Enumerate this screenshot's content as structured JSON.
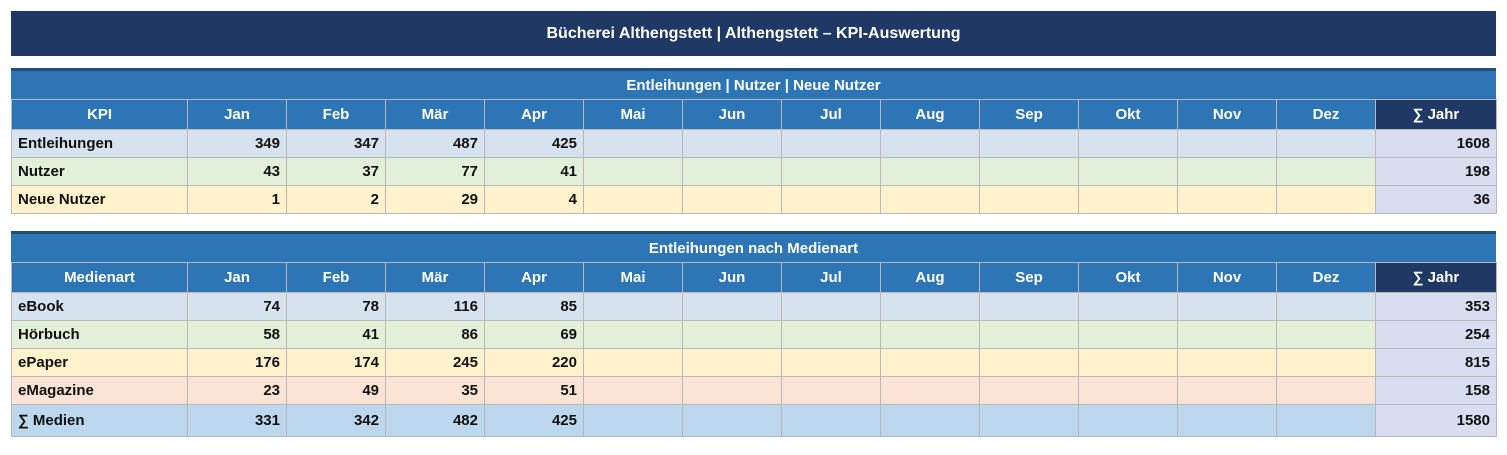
{
  "header": {
    "title": "Bücherei Althengstett  |  Althengstett – KPI-Auswertung"
  },
  "kpi_section": {
    "title": "Entleihungen | Nutzer | Neue Nutzer",
    "columns": [
      "KPI",
      "Jan",
      "Feb",
      "Mär",
      "Apr",
      "Mai",
      "Jun",
      "Jul",
      "Aug",
      "Sep",
      "Okt",
      "Nov",
      "Dez",
      "∑ Jahr"
    ],
    "rows": [
      {
        "label": "Entleihungen",
        "values": [
          "349",
          "347",
          "487",
          "425",
          "",
          "",
          "",
          "",
          "",
          "",
          "",
          ""
        ],
        "year": "1608"
      },
      {
        "label": "Nutzer",
        "values": [
          "43",
          "37",
          "77",
          "41",
          "",
          "",
          "",
          "",
          "",
          "",
          "",
          ""
        ],
        "year": "198"
      },
      {
        "label": "Neue Nutzer",
        "values": [
          "1",
          "2",
          "29",
          "4",
          "",
          "",
          "",
          "",
          "",
          "",
          "",
          ""
        ],
        "year": "36"
      }
    ]
  },
  "media_section": {
    "title": "Entleihungen nach Medienart",
    "columns": [
      "Medienart",
      "Jan",
      "Feb",
      "Mär",
      "Apr",
      "Mai",
      "Jun",
      "Jul",
      "Aug",
      "Sep",
      "Okt",
      "Nov",
      "Dez",
      "∑ Jahr"
    ],
    "rows": [
      {
        "label": "eBook",
        "values": [
          "74",
          "78",
          "116",
          "85",
          "",
          "",
          "",
          "",
          "",
          "",
          "",
          ""
        ],
        "year": "353"
      },
      {
        "label": "Hörbuch",
        "values": [
          "58",
          "41",
          "86",
          "69",
          "",
          "",
          "",
          "",
          "",
          "",
          "",
          ""
        ],
        "year": "254"
      },
      {
        "label": "ePaper",
        "values": [
          "176",
          "174",
          "245",
          "220",
          "",
          "",
          "",
          "",
          "",
          "",
          "",
          ""
        ],
        "year": "815"
      },
      {
        "label": "eMagazine",
        "values": [
          "23",
          "49",
          "35",
          "51",
          "",
          "",
          "",
          "",
          "",
          "",
          "",
          ""
        ],
        "year": "158"
      },
      {
        "label": "∑ Medien",
        "values": [
          "331",
          "342",
          "482",
          "425",
          "",
          "",
          "",
          "",
          "",
          "",
          "",
          ""
        ],
        "year": "1580"
      }
    ]
  },
  "colors": {
    "banner": "#1f3864",
    "header_blue": "#2e75b6",
    "row_blue": "#d6e3ee",
    "row_green": "#e2efd9",
    "row_yellow": "#fff2cc",
    "row_pink": "#fbe4d5",
    "row_total": "#bdd7ee",
    "year_col": "#d9ddf0"
  }
}
